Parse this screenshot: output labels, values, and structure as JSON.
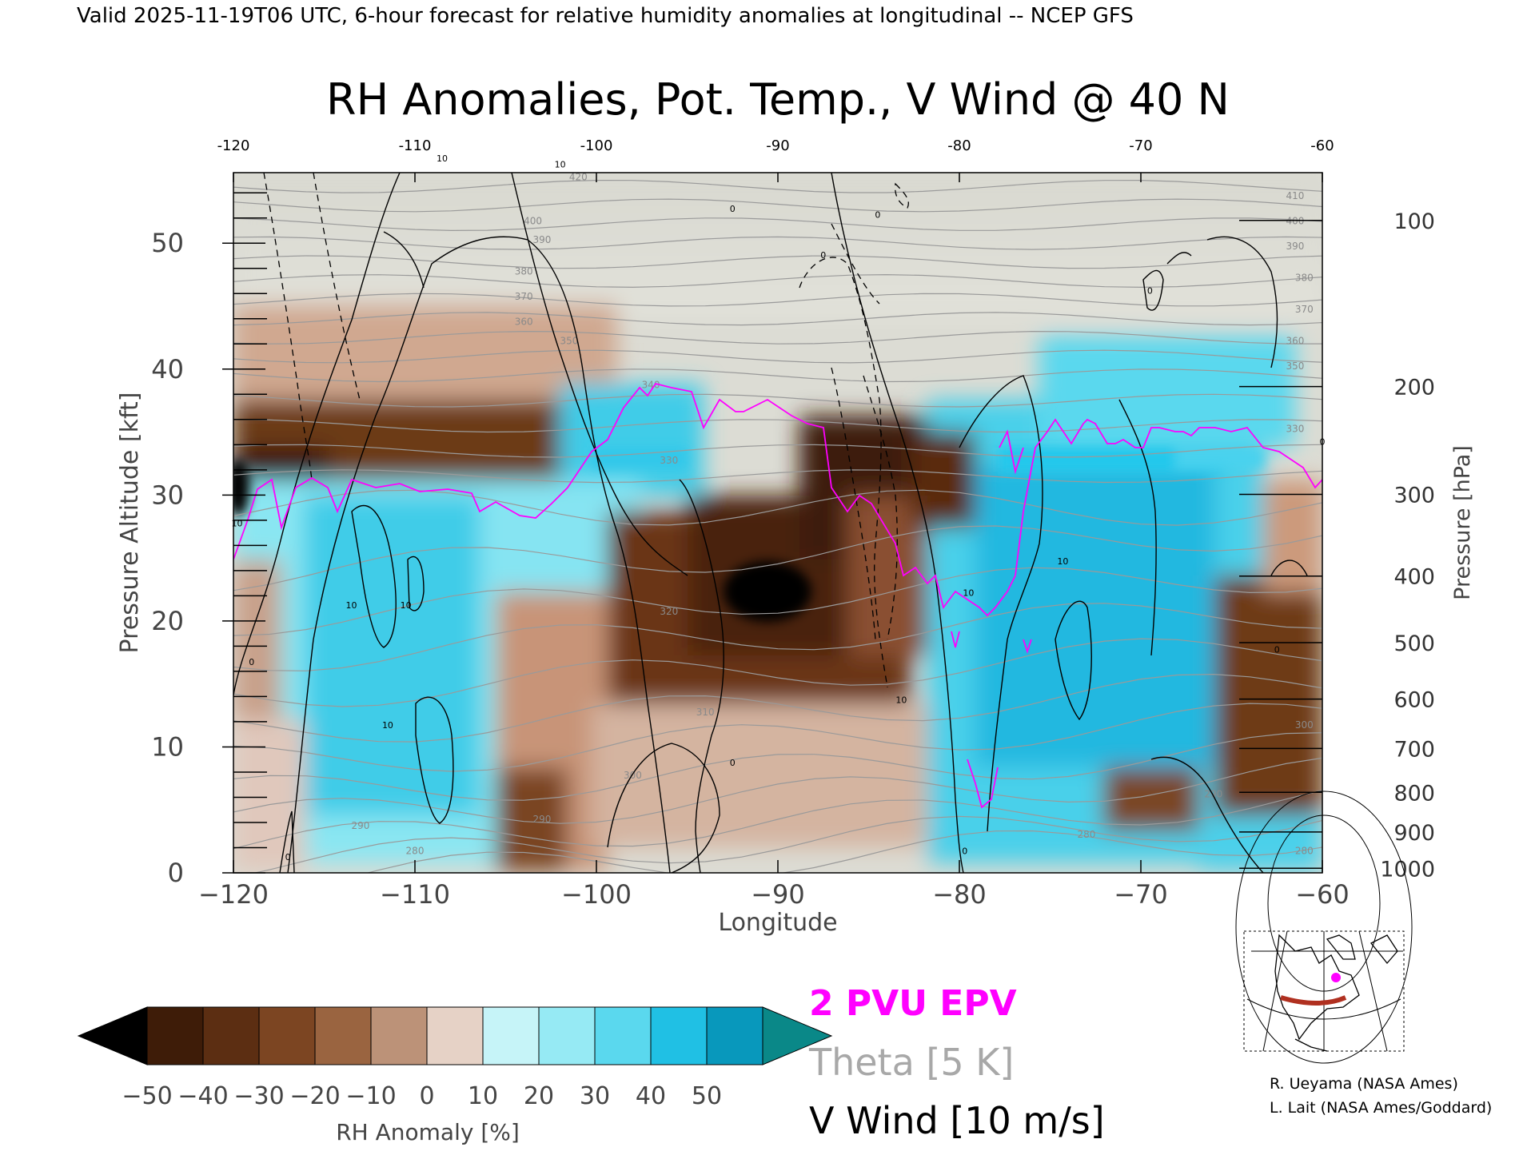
{
  "header": {
    "valid_line": "Valid 2025-11-19T06 UTC, 6-hour forecast for relative humidity anomalies at longitudinal -- NCEP GFS",
    "title": "RH Anomalies, Pot. Temp., V Wind @ 40 N"
  },
  "chart_data": {
    "type": "heatmap",
    "title": "RH Anomalies, Pot. Temp., V Wind @ 40 N",
    "xlabel": "Longitude",
    "ylabel": "Pressure Altitude [kft]",
    "y2label": "Pressure [hPa]",
    "xlim": [
      -120,
      -60
    ],
    "ylim": [
      0,
      55.6
    ],
    "x_ticks": [
      -120,
      -110,
      -100,
      -90,
      -80,
      -70,
      -60
    ],
    "x_tick_labels": [
      "−120",
      "−110",
      "−100",
      "−90",
      "−80",
      "−70",
      "−60"
    ],
    "top_tick_labels": [
      "-120",
      "-110",
      "-100",
      "-90",
      "-80",
      "-70",
      "-60"
    ],
    "y_ticks": [
      0,
      10,
      20,
      30,
      40,
      50
    ],
    "pressure_ticks": [
      {
        "hpa": 1000,
        "label": "1000"
      },
      {
        "hpa": 900,
        "label": "900"
      },
      {
        "hpa": 800,
        "label": "800"
      },
      {
        "hpa": 700,
        "label": "700"
      },
      {
        "hpa": 600,
        "label": "600"
      },
      {
        "hpa": 500,
        "label": "500"
      },
      {
        "hpa": 400,
        "label": "400"
      },
      {
        "hpa": 300,
        "label": "300"
      },
      {
        "hpa": 200,
        "label": "200"
      },
      {
        "hpa": 100,
        "label": "100"
      }
    ],
    "theta_labels": [
      {
        "lon": -61,
        "alt": 1.5,
        "text": "280"
      },
      {
        "lon": -73,
        "alt": 2.8,
        "text": "280"
      },
      {
        "lon": -110,
        "alt": 1.5,
        "text": "280"
      },
      {
        "lon": -113,
        "alt": 3.5,
        "text": "290"
      },
      {
        "lon": -103,
        "alt": 4.0,
        "text": "290"
      },
      {
        "lon": -66,
        "alt": 6.0,
        "text": "290"
      },
      {
        "lon": -98,
        "alt": 7.5,
        "text": "300"
      },
      {
        "lon": -61,
        "alt": 11.5,
        "text": "300"
      },
      {
        "lon": -94,
        "alt": 12.5,
        "text": "310"
      },
      {
        "lon": -96,
        "alt": 20.5,
        "text": "320"
      },
      {
        "lon": -96,
        "alt": 32.5,
        "text": "330"
      },
      {
        "lon": -61.5,
        "alt": 35.0,
        "text": "330"
      },
      {
        "lon": -97,
        "alt": 38.5,
        "text": "340"
      },
      {
        "lon": -101.5,
        "alt": 42.0,
        "text": "350"
      },
      {
        "lon": -61.5,
        "alt": 40.0,
        "text": "350"
      },
      {
        "lon": -104,
        "alt": 43.5,
        "text": "360"
      },
      {
        "lon": -61.5,
        "alt": 42.0,
        "text": "360"
      },
      {
        "lon": -104,
        "alt": 45.5,
        "text": "370"
      },
      {
        "lon": -61,
        "alt": 44.5,
        "text": "370"
      },
      {
        "lon": -104,
        "alt": 47.5,
        "text": "380"
      },
      {
        "lon": -61,
        "alt": 47.0,
        "text": "380"
      },
      {
        "lon": -103,
        "alt": 50.0,
        "text": "390"
      },
      {
        "lon": -61.5,
        "alt": 49.5,
        "text": "390"
      },
      {
        "lon": -103.5,
        "alt": 51.5,
        "text": "400"
      },
      {
        "lon": -61.5,
        "alt": 51.5,
        "text": "400"
      },
      {
        "lon": -61.5,
        "alt": 53.5,
        "text": "410"
      },
      {
        "lon": -101,
        "alt": 55.0,
        "text": "420"
      }
    ],
    "vwind_labels": [
      {
        "lon": -119.8,
        "alt": 27.5,
        "text": "10"
      },
      {
        "lon": -108.5,
        "alt": 56.5,
        "text": "10"
      },
      {
        "lon": -113.5,
        "alt": 21.0,
        "text": "10"
      },
      {
        "lon": -110.5,
        "alt": 21.0,
        "text": "10"
      },
      {
        "lon": -111.5,
        "alt": 11.5,
        "text": "10"
      },
      {
        "lon": -102,
        "alt": 56.0,
        "text": "10"
      },
      {
        "lon": -92.5,
        "alt": 52.5,
        "text": "0"
      },
      {
        "lon": -87.5,
        "alt": 48.8,
        "text": "0"
      },
      {
        "lon": -84.5,
        "alt": 52.0,
        "text": "0"
      },
      {
        "lon": -83.2,
        "alt": 13.5,
        "text": "10"
      },
      {
        "lon": -79.5,
        "alt": 22.0,
        "text": "10"
      },
      {
        "lon": -74.3,
        "alt": 24.5,
        "text": "10"
      },
      {
        "lon": -79.7,
        "alt": 1.5,
        "text": "0"
      },
      {
        "lon": -92.5,
        "alt": 8.5,
        "text": "0"
      },
      {
        "lon": -117,
        "alt": 1.0,
        "text": "0"
      },
      {
        "lon": -119,
        "alt": 16.5,
        "text": "0"
      },
      {
        "lon": -69.5,
        "alt": 46.0,
        "text": "0"
      },
      {
        "lon": -60,
        "alt": 34.0,
        "text": "0"
      },
      {
        "lon": -62.5,
        "alt": 17.5,
        "text": "0"
      }
    ],
    "colorbar": {
      "label": "RH Anomaly [%]",
      "levels": [
        -50,
        -40,
        -30,
        -20,
        -10,
        0,
        10,
        20,
        30,
        40,
        50
      ],
      "tick_labels": [
        "−50",
        "−40",
        "−30",
        "−20",
        "−10",
        "0",
        "10",
        "20",
        "30",
        "40",
        "50"
      ],
      "colors": [
        "#3e1c08",
        "#5c2e12",
        "#7c4522",
        "#9a6440",
        "#bc9278",
        "#e6d2c6",
        "#c6f4f8",
        "#96eaf4",
        "#5ad8ee",
        "#20c0e4",
        "#0898bc"
      ],
      "under_color": "#000000",
      "over_color": "#0a8888"
    },
    "legend": {
      "epv": {
        "text": "2 PVU EPV",
        "color": "#ff00ff"
      },
      "theta": {
        "text": "Theta [5 K]",
        "color": "#a8a8a8"
      },
      "vwind": {
        "text": "V Wind [10 m/s]",
        "color": "#000000"
      }
    }
  },
  "credits": {
    "line1": "R. Ueyama (NASA Ames)",
    "line2": "L. Lait (NASA Ames/Goddard)"
  }
}
